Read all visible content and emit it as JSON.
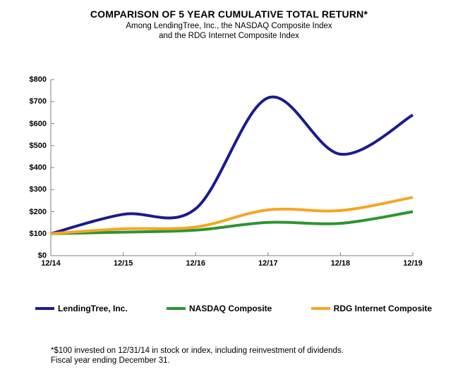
{
  "header": {
    "title": "COMPARISON OF 5 YEAR CUMULATIVE TOTAL RETURN*",
    "subtitle_line1": "Among LendingTree, Inc., the NASDAQ Composite Index",
    "subtitle_line2": "and the RDG Internet Composite Index"
  },
  "footnote": {
    "line1": "*$100 invested on 12/31/14 in stock or index, including reinvestment of dividends.",
    "line2": "Fiscal year ending December 31."
  },
  "chart_data": {
    "type": "line",
    "title": "COMPARISON OF 5 YEAR CUMULATIVE TOTAL RETURN*",
    "x": [
      "12/14",
      "12/15",
      "12/16",
      "12/17",
      "12/18",
      "12/19"
    ],
    "series": [
      {
        "name": "LendingTree, Inc.",
        "color": "#1b1b8e",
        "values": [
          100,
          188,
          213,
          717,
          461,
          639
        ]
      },
      {
        "name": "NASDAQ Composite",
        "color": "#2e9431",
        "values": [
          100,
          107,
          116,
          151,
          147,
          200
        ]
      },
      {
        "name": "RDG Internet Composite",
        "color": "#f5a623",
        "values": [
          100,
          122,
          130,
          208,
          205,
          265
        ]
      }
    ],
    "ylim": [
      0,
      800
    ],
    "ytick_interval": 100,
    "ytick_labels": [
      "$0",
      "$100",
      "$200",
      "$300",
      "$400",
      "$500",
      "$600",
      "$700",
      "$800"
    ],
    "xlabel": "",
    "ylabel": "",
    "grid": false,
    "legend_position": "bottom",
    "line_smoothing": true,
    "axis_color": "#808080"
  }
}
